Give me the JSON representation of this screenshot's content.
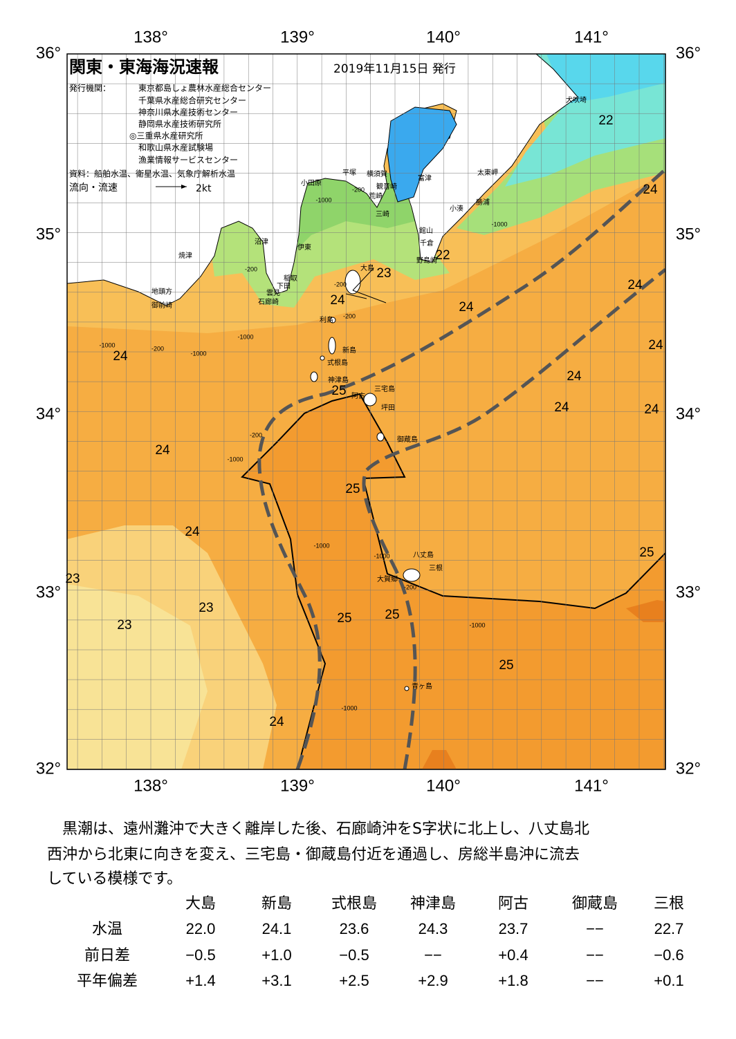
{
  "header": {
    "title": "関東・東海海況速報",
    "date": "2019年11月15日 発行",
    "issuer_label": "発行機関：",
    "issuers": [
      "東京都島しょ農林水産総合センター",
      "千葉県水産総合研究センター",
      "神奈川県水産技術センター",
      "静岡県水産技術研究所",
      "◎三重県水産研究所",
      "和歌山県水産試験場",
      "漁業情報サービスセンター"
    ],
    "source": "資料：船舶水温、衛星水温、気象庁解析水温",
    "current_label": "流向・流速",
    "current_scale": "2kt"
  },
  "map": {
    "lon_labels": [
      "138°",
      "139°",
      "140°",
      "141°"
    ],
    "lat_labels": [
      "36°",
      "35°",
      "34°",
      "33°",
      "32°"
    ],
    "place_names": [
      "犬吠埼",
      "太東岬",
      "勝浦",
      "小湊",
      "富津",
      "横須賀",
      "観音崎",
      "平塚",
      "小田原",
      "荒崎",
      "三崎",
      "館山",
      "千倉",
      "野島崎",
      "沼津",
      "伊東",
      "焼津",
      "稲取",
      "下田",
      "雲見",
      "石廊崎",
      "地頭方",
      "御前崎",
      "大島",
      "利島",
      "新島",
      "式根島",
      "神津島",
      "阿古",
      "三宅島",
      "坪田",
      "御蔵島",
      "八丈島",
      "三根",
      "大賀郷",
      "青ヶ島"
    ],
    "temperature_labels": [
      "22",
      "24",
      "24",
      "23",
      "24",
      "22",
      "24",
      "24",
      "24",
      "24",
      "25",
      "24",
      "24",
      "24",
      "25",
      "24",
      "25",
      "23",
      "23",
      "25",
      "25",
      "23",
      "25",
      "24"
    ],
    "depth_labels": [
      "-200",
      "-1000",
      "-200",
      "-200",
      "-200",
      "-1000",
      "-1000",
      "-200",
      "-1000",
      "-1000",
      "-200",
      "-1000",
      "-1000",
      "-1000",
      "-1000",
      "-200",
      "-1000"
    ]
  },
  "summary": [
    "黒潮は、遠州灘沖で大きく離岸した後、石廊崎沖をS字状に北上し、八丈島北",
    "西沖から北東に向きを変え、三宅島・御蔵島付近を通過し、房総半島沖に流去",
    "している模様です。"
  ],
  "table": {
    "columns": [
      "大島",
      "新島",
      "式根島",
      "神津島",
      "阿古",
      "御蔵島",
      "三根"
    ],
    "rows": [
      {
        "label": "水温",
        "values": [
          "22.0",
          "24.1",
          "23.6",
          "24.3",
          "23.7",
          "−−",
          "22.7"
        ]
      },
      {
        "label": "前日差",
        "values": [
          "−0.5",
          "+1.0",
          "−0.5",
          "−−",
          "+0.4",
          "−−",
          "−0.6"
        ]
      },
      {
        "label": "平年偏差",
        "values": [
          "+1.4",
          "+3.1",
          "+2.5",
          "+2.9",
          "+1.8",
          "−−",
          "+0.1"
        ]
      }
    ]
  }
}
